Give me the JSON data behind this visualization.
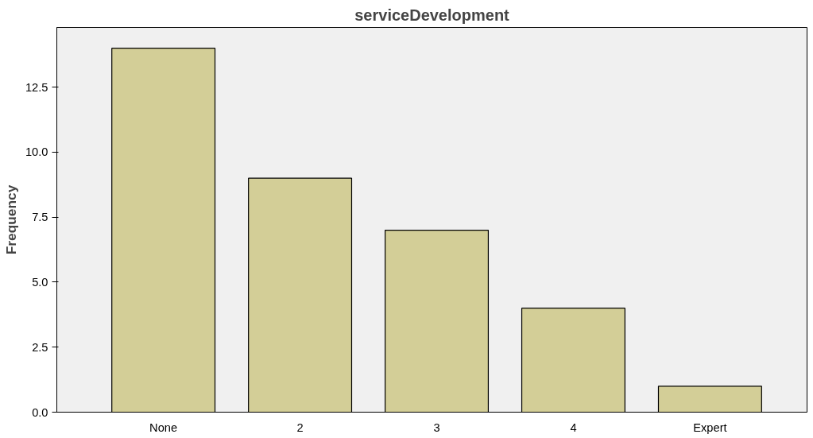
{
  "chart_data": {
    "type": "bar",
    "title": "serviceDevelopment",
    "ylabel": "Frequency",
    "categories": [
      "None",
      "2",
      "3",
      "4",
      "Expert"
    ],
    "values": [
      14,
      9,
      7,
      4,
      1
    ],
    "color": "#d3ce97",
    "ylim": [
      0,
      14.8
    ],
    "yticks": [
      {
        "value": 0,
        "label": "0.0"
      },
      {
        "value": 2.5,
        "label": "2.5"
      },
      {
        "value": 5,
        "label": "5.0"
      },
      {
        "value": 7.5,
        "label": "7.5"
      },
      {
        "value": 10,
        "label": "10.0"
      },
      {
        "value": 12.5,
        "label": "12.5"
      }
    ],
    "grid": false
  }
}
